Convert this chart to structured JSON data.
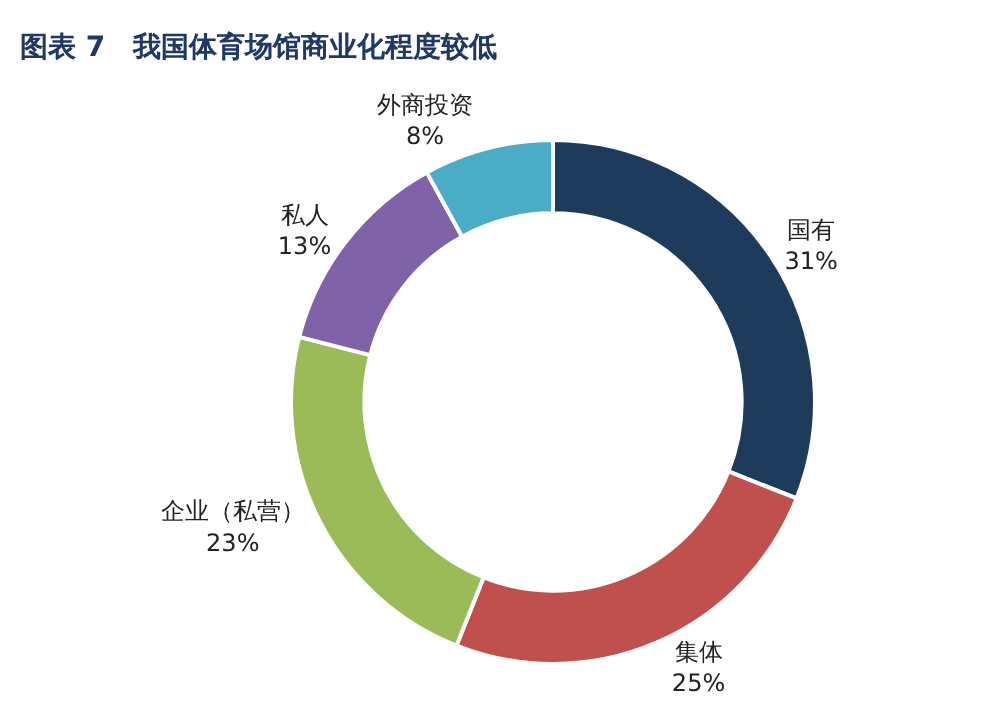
{
  "chart_data": {
    "type": "donut",
    "title": "图表 7　我国体育场馆商业化程度较低",
    "categories": [
      "国有",
      "集体",
      "企业（私营）",
      "私人",
      "外商投资"
    ],
    "values": [
      31,
      25,
      23,
      13,
      8
    ],
    "value_labels": [
      "31%",
      "25%",
      "23%",
      "13%",
      "8%"
    ],
    "colors": [
      "#1f3b5c",
      "#c0504d",
      "#9bbb59",
      "#7f62a8",
      "#4bacc6"
    ],
    "legend": false
  }
}
